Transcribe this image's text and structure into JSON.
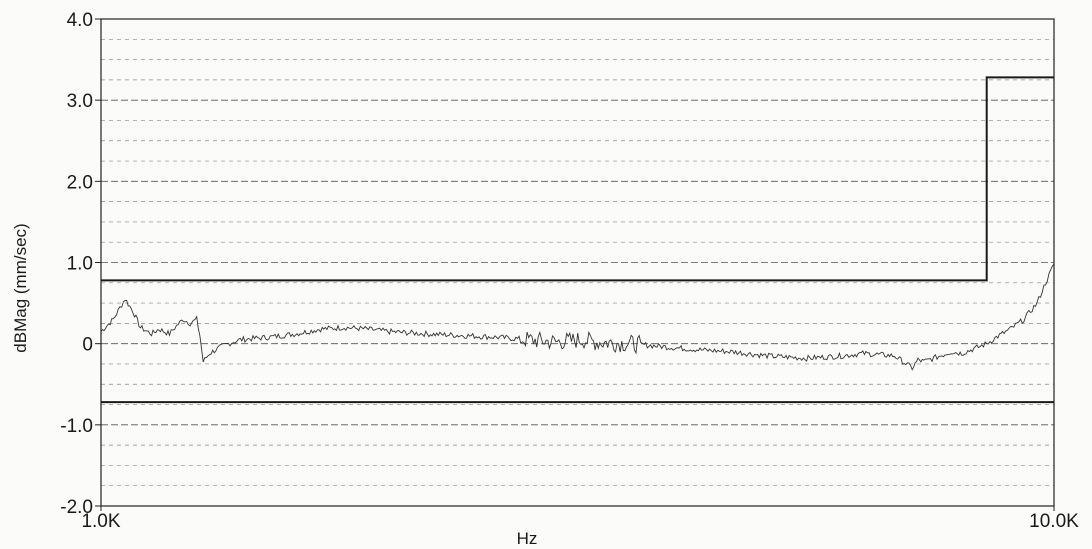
{
  "chart_data": {
    "type": "line",
    "xlabel": "Hz",
    "ylabel": "dBMag (mm/sec)",
    "x_scale": "log",
    "xlim": [
      1000,
      10000
    ],
    "ylim": [
      -2.0,
      4.0
    ],
    "y_ticks": [
      "4.0",
      "3.0",
      "2.0",
      "1.0",
      "0",
      "-1.0",
      "-2.0"
    ],
    "x_tick_labels": [
      "1.0K",
      "10.0K"
    ],
    "grid": true,
    "series": [
      {
        "role": "upper-limit",
        "x": [
          1000,
          8500,
          8500,
          10000
        ],
        "y": [
          0.78,
          0.78,
          3.28,
          3.28
        ]
      },
      {
        "role": "lower-limit",
        "x": [
          1000,
          10000
        ],
        "y": [
          -0.72,
          -0.72
        ]
      },
      {
        "role": "measurement",
        "x": [
          1000,
          1030,
          1060,
          1080,
          1100,
          1130,
          1150,
          1180,
          1200,
          1220,
          1240,
          1260,
          1270,
          1280,
          1300,
          1330,
          1360,
          1400,
          1500,
          1600,
          1700,
          1800,
          1900,
          2000,
          2200,
          2400,
          2600,
          2800,
          3000,
          3200,
          3300,
          3600,
          4000,
          4300,
          4600,
          5000,
          5500,
          6000,
          6300,
          6800,
          7100,
          7200,
          7300,
          7600,
          7800,
          8000,
          8300,
          8500,
          8700,
          9000,
          9300,
          9600,
          9800,
          10000
        ],
        "y": [
          0.15,
          0.3,
          0.55,
          0.4,
          0.2,
          0.12,
          0.18,
          0.12,
          0.22,
          0.3,
          0.25,
          0.3,
          0.1,
          -0.22,
          -0.12,
          -0.05,
          0.0,
          0.05,
          0.08,
          0.12,
          0.18,
          0.2,
          0.18,
          0.15,
          0.12,
          0.1,
          0.08,
          0.05,
          0.02,
          0.05,
          0.02,
          0.0,
          -0.05,
          -0.08,
          -0.1,
          -0.15,
          -0.18,
          -0.15,
          -0.12,
          -0.15,
          -0.3,
          -0.2,
          -0.22,
          -0.15,
          -0.1,
          -0.12,
          -0.05,
          0.0,
          0.08,
          0.18,
          0.3,
          0.5,
          0.75,
          0.98
        ]
      }
    ]
  }
}
